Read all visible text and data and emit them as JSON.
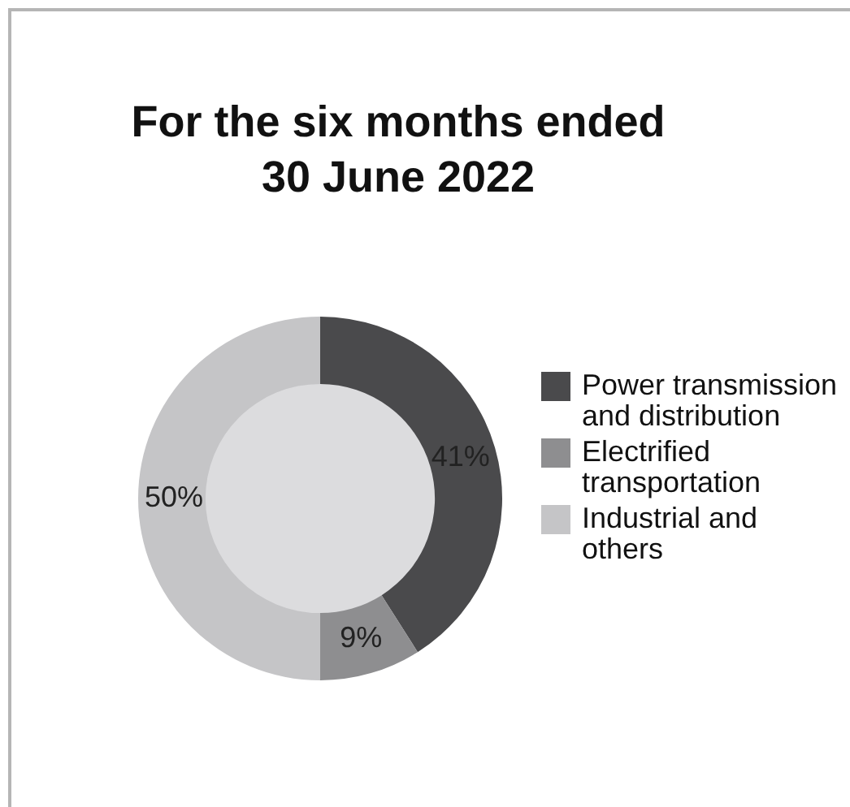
{
  "chart_data": {
    "type": "donut",
    "title": "For the six months ended\n30 June 2022",
    "categories": [
      "Power transmission and distribution",
      "Electrified transportation",
      "Industrial and others"
    ],
    "values": [
      41,
      9,
      50
    ],
    "colors": [
      "#4a4a4c",
      "#8e8e90",
      "#c5c5c7"
    ],
    "value_labels": [
      "41%",
      "9%",
      "50%"
    ],
    "legend": "right"
  }
}
